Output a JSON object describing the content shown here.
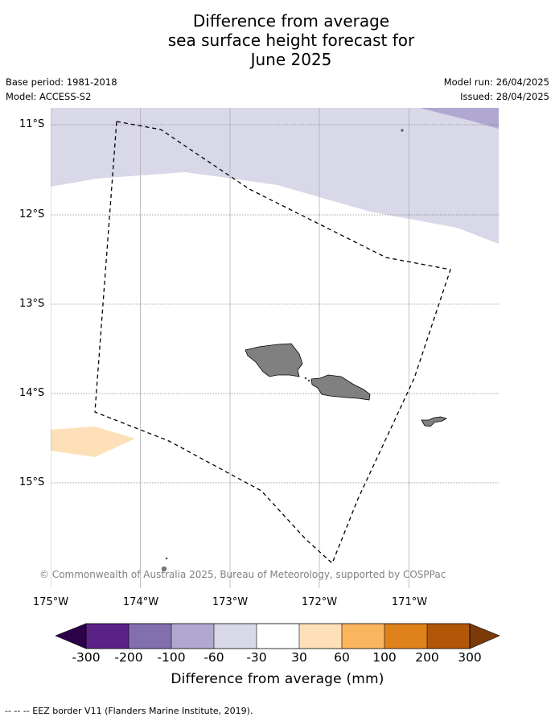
{
  "title": {
    "line1": "Difference from average",
    "line2": "sea surface height forecast for",
    "line3": "June 2025"
  },
  "meta": {
    "base_period": "Base period: 1981-2018",
    "model": "Model: ACCESS-S2",
    "model_run": "Model run: 26/04/2025",
    "issued": "Issued: 28/04/2025"
  },
  "map": {
    "lat_labels": [
      "11°S",
      "12°S",
      "13°S",
      "14°S",
      "15°S"
    ],
    "lon_labels": [
      "175°W",
      "174°W",
      "173°W",
      "172°W",
      "171°W"
    ],
    "copyright": "© Commonwealth of Australia 2025, Bureau of Meteorology, supported by COSPPac",
    "colors": {
      "band_minus30_minus60": "#d8d8e9",
      "band_minus60_minus100": "#b1a8d2",
      "band_30_60": "#fde0b7",
      "land": "#808080",
      "eez_border": "#000000"
    }
  },
  "colorbar": {
    "ticks": [
      "-300",
      "-200",
      "-100",
      "-60",
      "-30",
      "30",
      "60",
      "100",
      "200",
      "300"
    ],
    "colors": [
      "#5a2187",
      "#8170ad",
      "#b1a8d2",
      "#d8d8e9",
      "#ffffff",
      "#fde0b7",
      "#fbb55f",
      "#e0821c",
      "#b25707"
    ],
    "low_extend_color": "#2d024a",
    "high_extend_color": "#7b3a08",
    "label": "Difference from average (mm)"
  },
  "footnote": "-- -- -- EEZ border V11 (Flanders Marine Institute, 2019)."
}
